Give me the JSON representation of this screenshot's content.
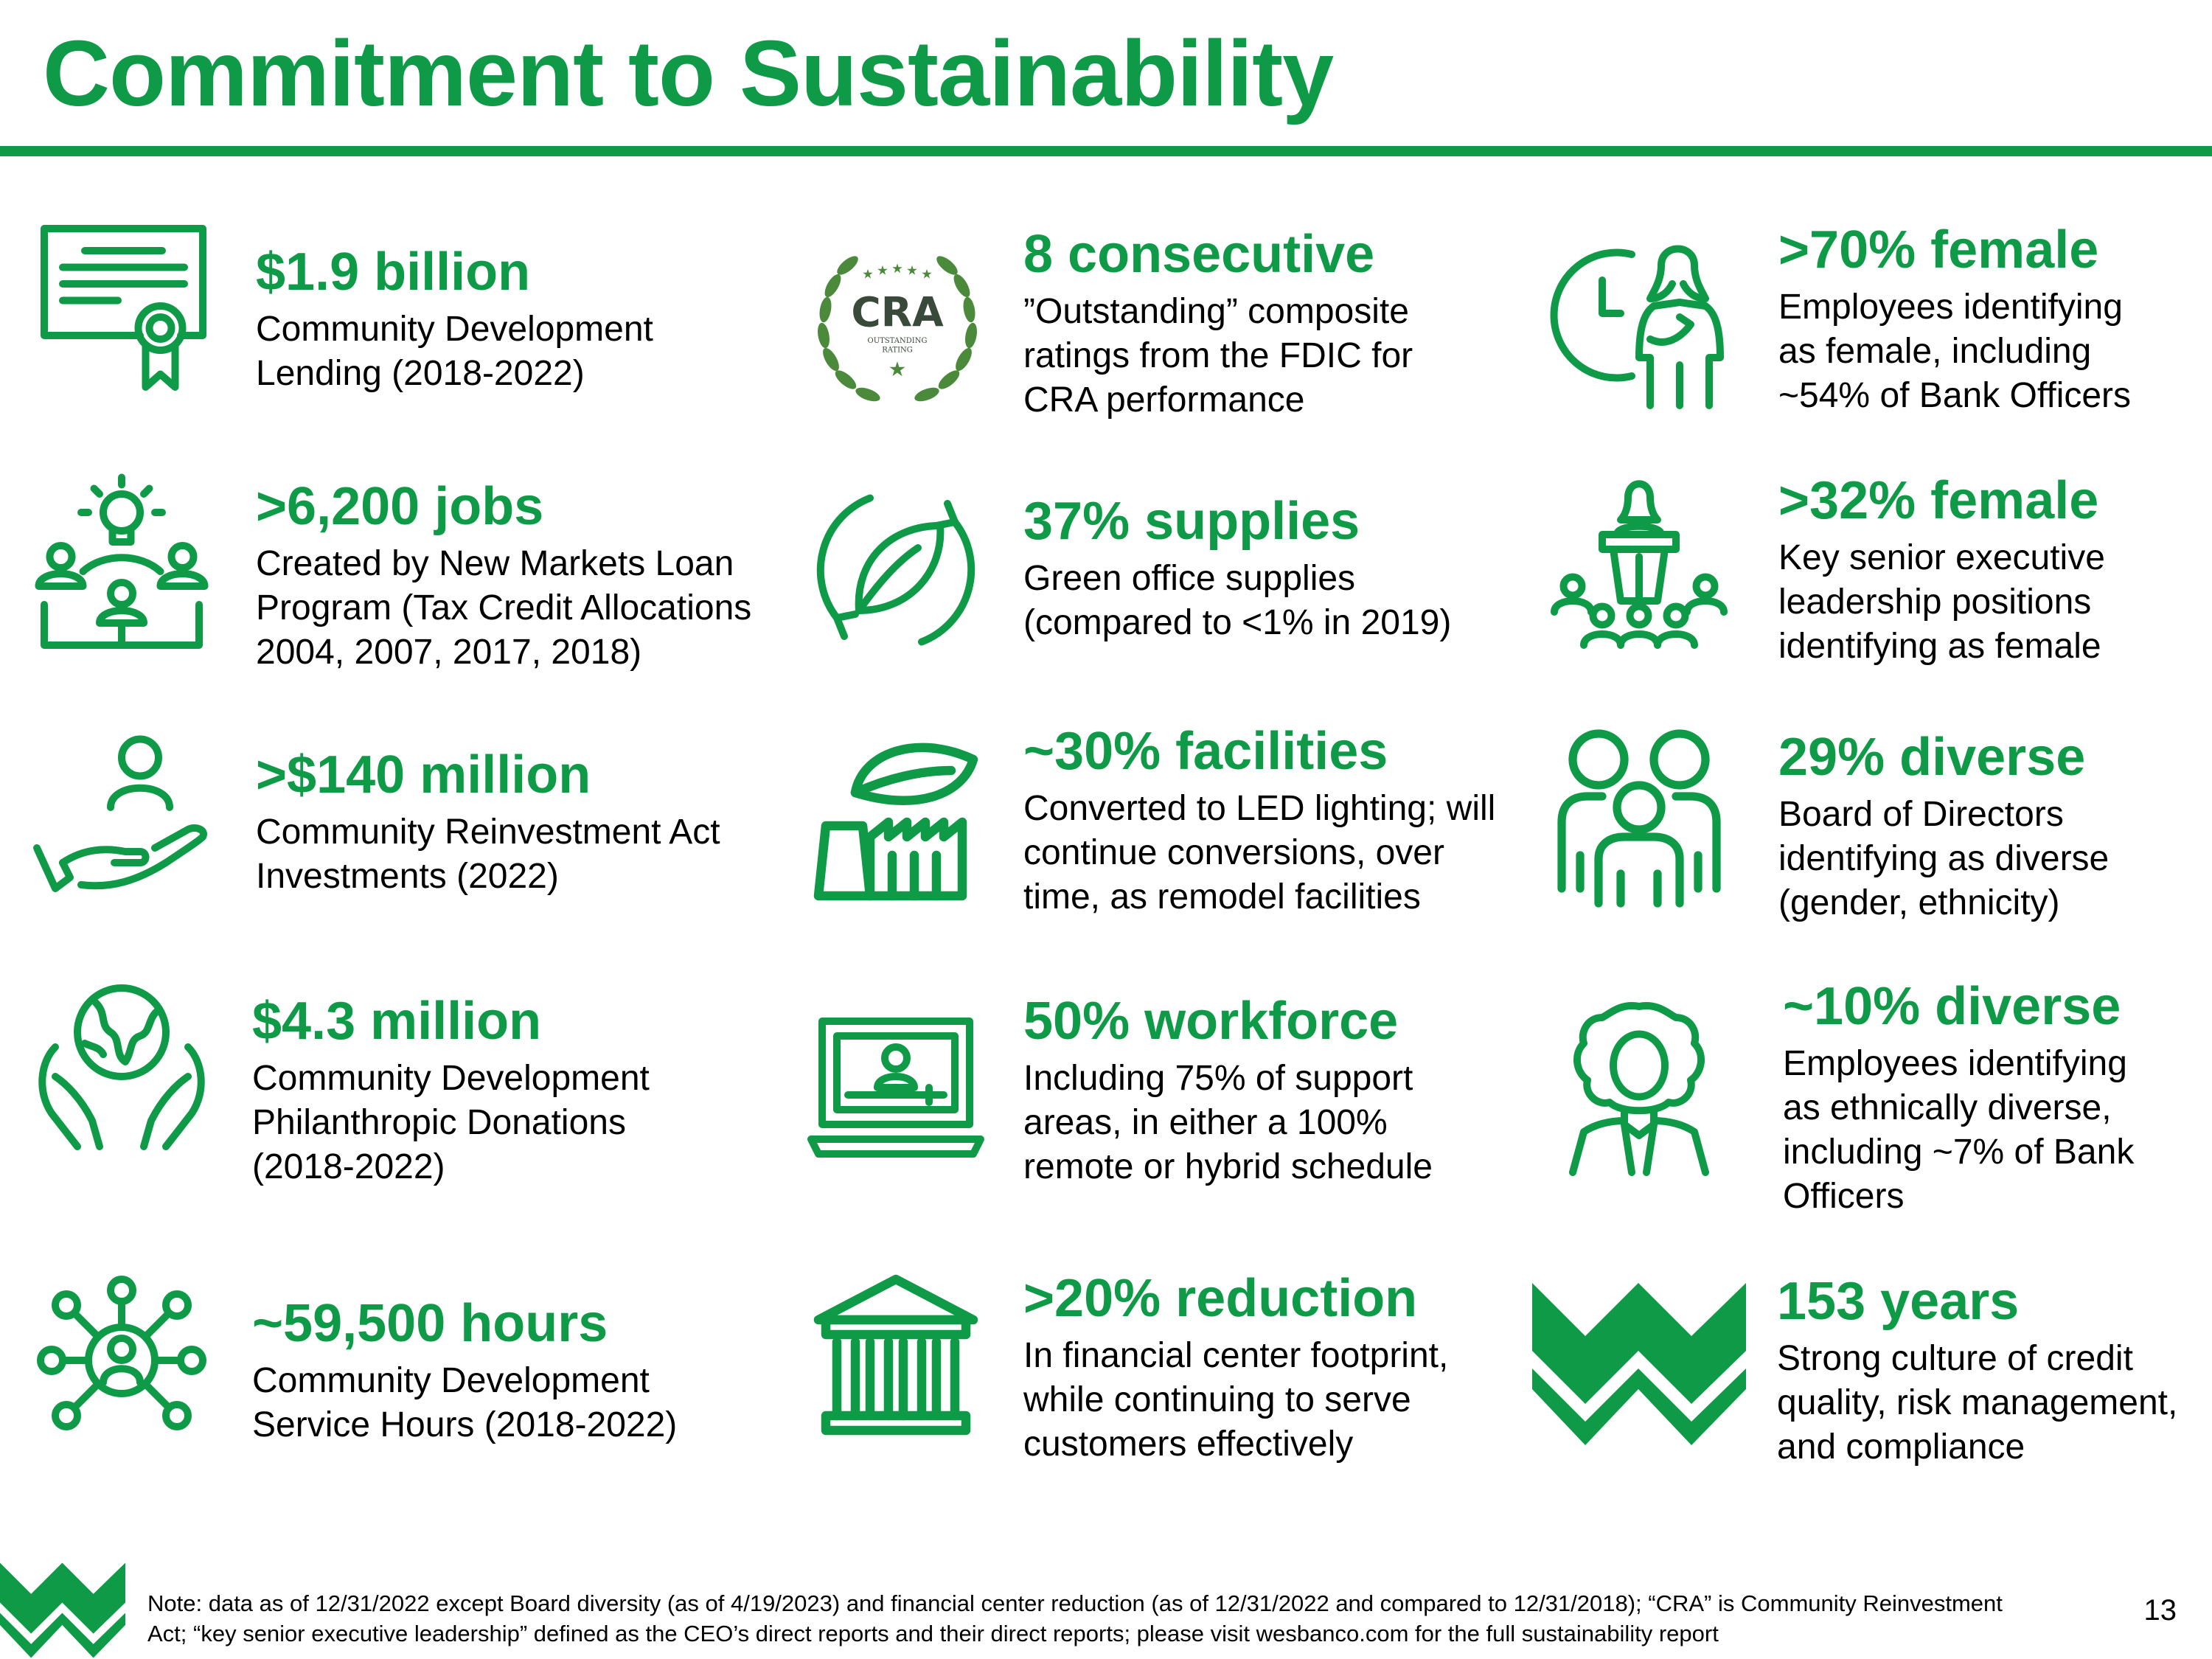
{
  "page": {
    "title": "Commitment to Sustainability",
    "page_number": "13",
    "accent_color": "#0e9a47"
  },
  "stats": [
    {
      "id": "lending",
      "icon": "certificate-icon",
      "headline": "$1.9 billion",
      "desc": "Community Development\nLending (2018-2022)"
    },
    {
      "id": "cra",
      "icon": "cra-outstanding-rating-badge",
      "badge_text": "CRA",
      "badge_sub": "OUTSTANDING RATING",
      "headline": "8 consecutive",
      "desc": "”Outstanding” composite\nratings from the FDIC for\nCRA performance"
    },
    {
      "id": "female-employees",
      "icon": "female-professional-clock-icon",
      "headline": ">70% female",
      "desc": "Employees identifying\nas female, including\n~54% of Bank Officers"
    },
    {
      "id": "jobs",
      "icon": "team-idea-icon",
      "headline": ">6,200 jobs",
      "desc": "Created by New Markets Loan\nProgram (Tax Credit Allocations\n2004, 2007, 2017, 2018)"
    },
    {
      "id": "supplies",
      "icon": "recycle-leaf-icon",
      "headline": "37% supplies",
      "desc": "Green office supplies\n(compared to <1% in 2019)"
    },
    {
      "id": "female-leadership",
      "icon": "speaker-podium-icon",
      "headline": ">32% female",
      "desc": "Key senior executive\nleadership positions\nidentifying as female"
    },
    {
      "id": "investments",
      "icon": "hand-person-icon",
      "headline": ">$140 million",
      "desc": "Community Reinvestment Act\nInvestments (2022)"
    },
    {
      "id": "facilities",
      "icon": "green-factory-icon",
      "headline": "~30% facilities",
      "desc": "Converted to LED lighting; will\ncontinue conversions, over\ntime, as remodel facilities"
    },
    {
      "id": "board-diversity",
      "icon": "group-people-icon",
      "headline": "29% diverse",
      "desc": "Board of Directors\nidentifying as diverse\n(gender, ethnicity)"
    },
    {
      "id": "donations",
      "icon": "hands-globe-icon",
      "headline": "$4.3 million",
      "desc": "Community Development\nPhilanthropic Donations\n(2018-2022)"
    },
    {
      "id": "workforce",
      "icon": "laptop-remote-worker-icon",
      "headline": "50% workforce",
      "desc": "Including 75% of support\nareas, in either a 100%\nremote or hybrid schedule"
    },
    {
      "id": "ethnic-diversity",
      "icon": "curly-hair-person-icon",
      "headline": "~10% diverse",
      "desc": "Employees identifying\nas ethnically diverse,\nincluding ~7% of Bank\nOfficers"
    },
    {
      "id": "hours",
      "icon": "network-person-icon",
      "headline": "~59,500 hours",
      "desc": "Community Development\nService Hours (2018-2022)"
    },
    {
      "id": "footprint",
      "icon": "bank-building-icon",
      "headline": ">20% reduction",
      "desc": "In financial center footprint,\nwhile continuing to serve\ncustomers effectively"
    },
    {
      "id": "years",
      "icon": "wesbanco-w-logo",
      "headline": "153 years",
      "desc": "Strong culture of credit\nquality, risk management,\nand compliance"
    }
  ],
  "footnote": "Note: data as of 12/31/2022 except Board diversity (as of 4/19/2023) and financial center reduction (as of 12/31/2022 and compared to 12/31/2018); “CRA” is Community Reinvestment Act; “key senior executive leadership” defined as the CEO’s direct reports and their direct reports; please visit wesbanco.com for the full sustainability report"
}
